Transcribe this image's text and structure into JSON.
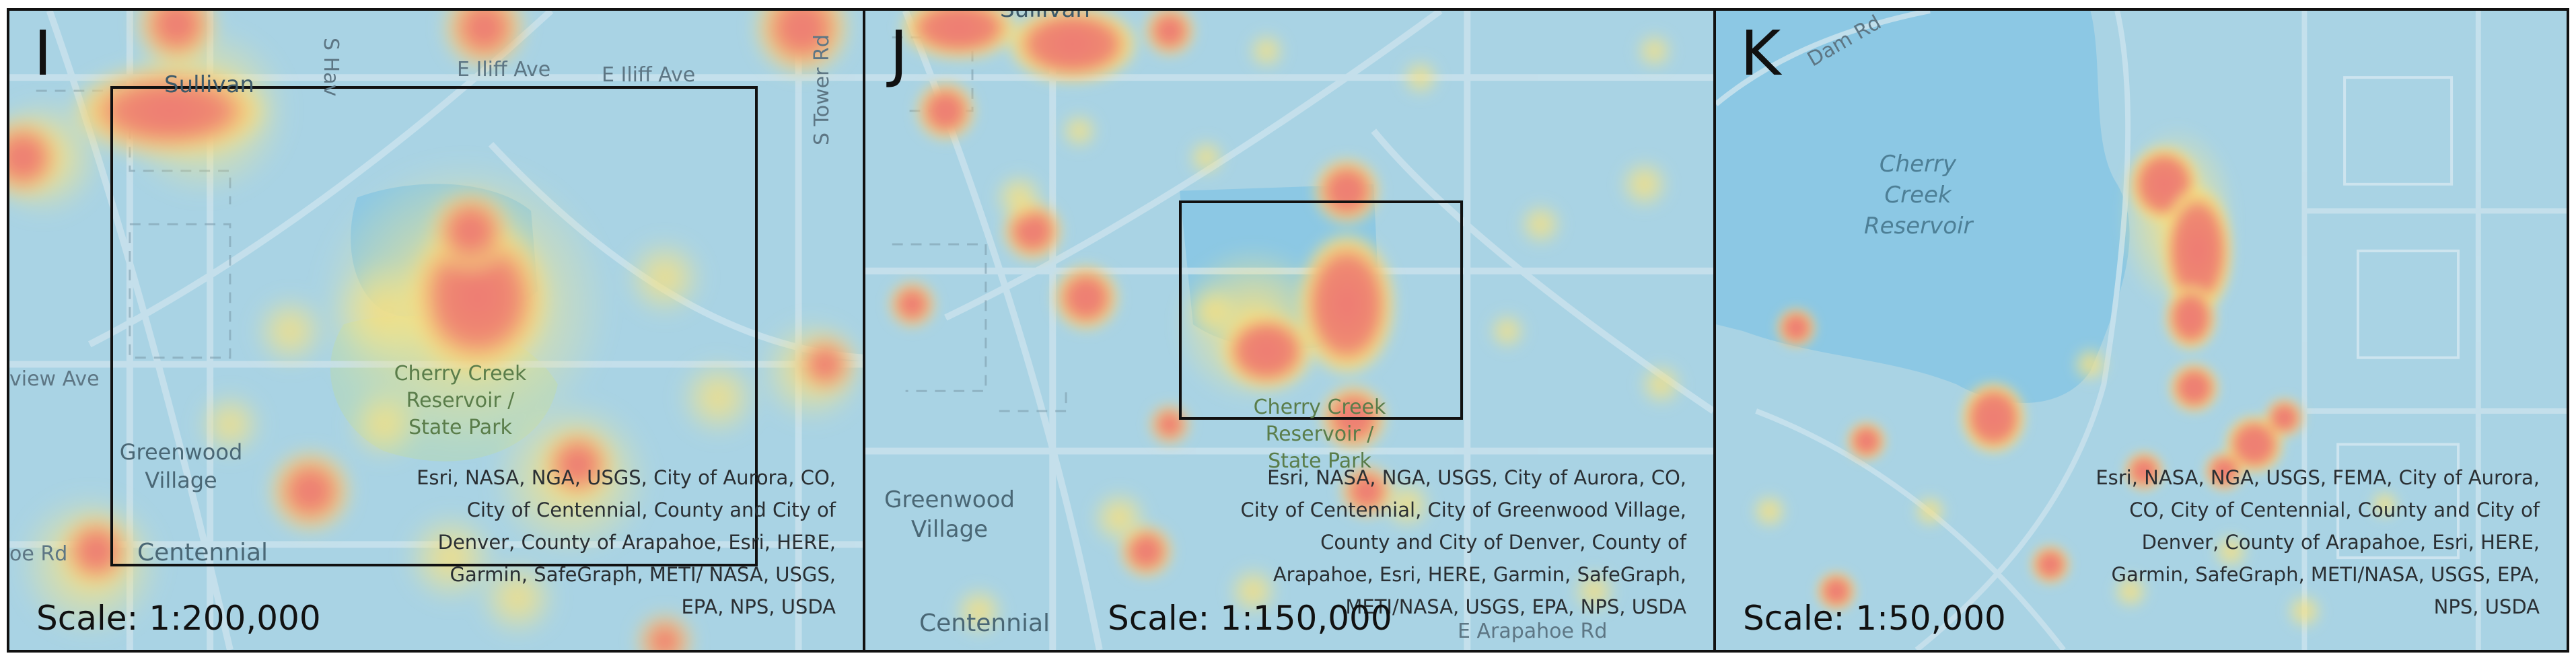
{
  "figure": {
    "panels": [
      {
        "letter": "I",
        "scale": "Scale: 1:200,000",
        "attribution": "Esri, NASA, NGA, USGS, City of Aurora, CO, City of Centennial, County and City of Denver, County of Arapahoe, Esri, HERE, Garmin, SafeGraph, METI/ NASA, USGS, EPA, NPS, USDA",
        "places": {
          "sullivan": "Sullivan",
          "greenwood": "Greenwood Village",
          "centennial": "Centennial",
          "park": "Cherry Creek Reservoir / State Park"
        },
        "roads": {
          "iliff1": "E Iliff Ave",
          "iliff2": "E Iliff Ave",
          "tower": "S Tower Rd",
          "havana": "S Hav",
          "view": "view Ave",
          "oe": "oe Rd"
        }
      },
      {
        "letter": "J",
        "scale": "Scale: 1:150,000",
        "attribution": "Esri, NASA, NGA, USGS, City of Aurora, CO, City of Centennial, City of Greenwood Village, County and City of Denver, County of Arapahoe, Esri, HERE, Garmin, SafeGraph, METI/NASA, USGS, EPA, NPS, USDA",
        "places": {
          "sullivan": "Sullivan",
          "greenwood": "Greenwood Village",
          "centennial": "Centennial",
          "park": "Cherry Creek Reservoir / State Park"
        },
        "roads": {
          "arapahoe": "E Arapahoe Rd"
        }
      },
      {
        "letter": "K",
        "scale": "Scale: 1:50,000",
        "attribution": "Esri, NASA, NGA, USGS, FEMA, City of Aurora, CO, City of Centennial, County and City of Denver, County of Arapahoe, Esri, HERE, Garmin, SafeGraph, METI/NASA, USGS, EPA, NPS, USDA",
        "places": {
          "reservoir": "Cherry Creek Reservoir"
        },
        "roads": {
          "dam": "Dam Rd"
        }
      }
    ]
  },
  "colors": {
    "water": "#8cc8e4",
    "land": "#a9d3e4",
    "heat_low": "#f6ea8a",
    "heat_high": "#ee7a73",
    "park": "#b7d8b4"
  }
}
